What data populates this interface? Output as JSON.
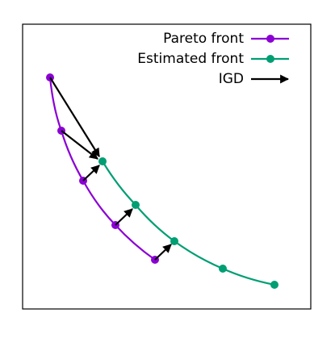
{
  "legend": [
    {
      "label": "Pareto front"
    },
    {
      "label": "Estimated front"
    },
    {
      "label": "IGD"
    }
  ]
}
